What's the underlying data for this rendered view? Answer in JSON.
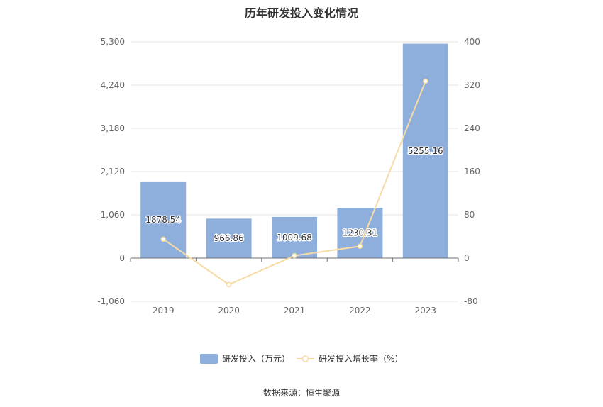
{
  "chart_data": {
    "title": "历年研发投入变化情况",
    "type": "bar",
    "categories": [
      "2019",
      "2020",
      "2021",
      "2022",
      "2023"
    ],
    "series": [
      {
        "name": "研发投入（万元）",
        "type": "bar",
        "axis": "left",
        "values": [
          1878.54,
          966.86,
          1009.68,
          1230.31,
          5255.16
        ],
        "labels": [
          "1878.54",
          "966.86",
          "1009.68",
          "1230.31",
          "5255.16"
        ],
        "color": "#8eaedb"
      },
      {
        "name": "研发投入增长率（%）",
        "type": "line",
        "axis": "right",
        "values": [
          35,
          -49,
          4.4,
          21.9,
          327.1
        ],
        "color": "#f7dba5"
      }
    ],
    "y_left": {
      "ylim": [
        -1060,
        5300
      ],
      "ticks": [
        5300,
        4240,
        3180,
        2120,
        1060,
        0,
        -1060
      ],
      "tick_labels": [
        "5,300",
        "4,240",
        "3,180",
        "2,120",
        "1,060",
        "0",
        "-1,060"
      ]
    },
    "y_right": {
      "ylim": [
        -80,
        400
      ],
      "ticks": [
        400,
        320,
        240,
        160,
        80,
        0,
        -80
      ],
      "tick_labels": [
        "400",
        "320",
        "240",
        "160",
        "80",
        "0",
        "-80"
      ]
    },
    "grid": true,
    "legend_position": "bottom"
  },
  "source": "数据来源：恒生聚源"
}
